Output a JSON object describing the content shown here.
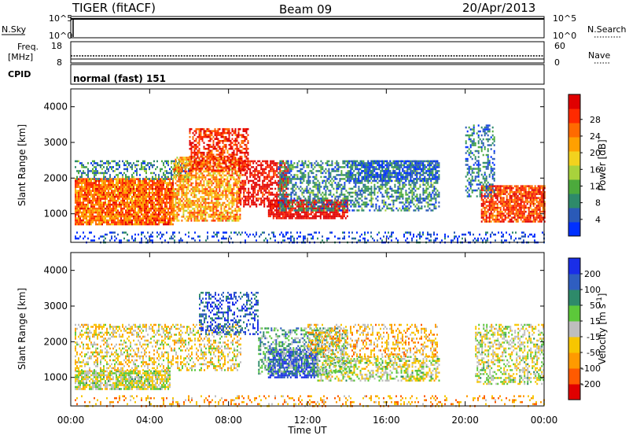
{
  "header": {
    "station": "TIGER (fitACF)",
    "beam": "Beam 09",
    "date": "20/Apr/2013"
  },
  "strips": {
    "nsky_label": "N.Sky",
    "nsearch_label": "N.Search",
    "freq_label_1": "Freq.",
    "freq_label_2": "[MHz]",
    "nave_label": "Nave",
    "cpid_label": "CPID",
    "cpid_value": "normal (fast) 151",
    "noise_ticks": [
      "10^5",
      "10^0"
    ],
    "freq_ticks": [
      "18",
      "8"
    ],
    "nave_ticks": [
      "60",
      "0"
    ]
  },
  "chart_data": [
    {
      "type": "heatmap",
      "title": "",
      "xlabel": "",
      "ylabel": "Slant Range [km]",
      "colorbar_label": "Power [dB]",
      "xlim": [
        0,
        24
      ],
      "ylim": [
        200,
        4500
      ],
      "x_ticks": [
        "00:00",
        "04:00",
        "08:00",
        "12:00",
        "16:00",
        "20:00",
        "00:00"
      ],
      "y_ticks": [
        1000,
        2000,
        3000,
        4000
      ],
      "colorbar_ticks": [
        "4",
        "8",
        "12",
        "16",
        "20",
        "24",
        "28"
      ],
      "colorbar_colors": [
        "#0030ff",
        "#2a5ab8",
        "#2e8a6a",
        "#4caa3c",
        "#a8d23c",
        "#f2d21e",
        "#ffa000",
        "#ff6a00",
        "#ff2a00",
        "#e00000"
      ],
      "regions": [
        {
          "t0": 0.2,
          "t1": 5.2,
          "r0": 700,
          "r1": 2000,
          "value": 22,
          "density": 0.9
        },
        {
          "t0": 0.2,
          "t1": 6.0,
          "r0": 2000,
          "r1": 2500,
          "value": 10,
          "density": 0.4
        },
        {
          "t0": 5.2,
          "t1": 8.6,
          "r0": 800,
          "r1": 2600,
          "value": 20,
          "density": 0.7
        },
        {
          "t0": 6.0,
          "t1": 9.0,
          "r0": 2200,
          "r1": 3400,
          "value": 25,
          "density": 0.6
        },
        {
          "t0": 8.5,
          "t1": 11.0,
          "r0": 1200,
          "r1": 2500,
          "value": 27,
          "density": 0.6
        },
        {
          "t0": 10.0,
          "t1": 14.0,
          "r0": 900,
          "r1": 1400,
          "value": 28,
          "density": 0.8
        },
        {
          "t0": 10.5,
          "t1": 18.7,
          "r0": 1100,
          "r1": 2500,
          "value": 10,
          "density": 0.5
        },
        {
          "t0": 14.0,
          "t1": 18.6,
          "r0": 1900,
          "r1": 2500,
          "value": 7,
          "density": 0.6
        },
        {
          "t0": 20.8,
          "t1": 24.0,
          "r0": 800,
          "r1": 1800,
          "value": 24,
          "density": 0.8
        },
        {
          "t0": 20.0,
          "t1": 21.5,
          "r0": 1500,
          "r1": 3500,
          "value": 9,
          "density": 0.35
        },
        {
          "t0": 0.2,
          "t1": 24.0,
          "r0": 200,
          "r1": 500,
          "value": 6,
          "density": 0.25
        }
      ]
    },
    {
      "type": "heatmap",
      "title": "",
      "xlabel": "Time UT",
      "ylabel": "Slant Range [km]",
      "colorbar_label": "Velocity [m s^-1]",
      "xlim": [
        0,
        24
      ],
      "ylim": [
        200,
        4500
      ],
      "x_ticks": [
        "00:00",
        "04:00",
        "08:00",
        "12:00",
        "16:00",
        "20:00",
        "00:00"
      ],
      "y_ticks": [
        1000,
        2000,
        3000,
        4000
      ],
      "colorbar_ticks": [
        "200",
        "100",
        "50",
        "15",
        "-15",
        "-50",
        "-100",
        "-200"
      ],
      "colorbar_colors": [
        "#1a2ee8",
        "#2f5ec0",
        "#2e8a6a",
        "#5cc83a",
        "#bebebe",
        "#f7c600",
        "#ff9a00",
        "#ff5a00",
        "#e00000"
      ],
      "regions": [
        {
          "t0": 0.2,
          "t1": 5.0,
          "r0": 700,
          "r1": 1200,
          "value": 0,
          "density": 0.8
        },
        {
          "t0": 0.2,
          "t1": 8.6,
          "r0": 1200,
          "r1": 2500,
          "value": -30,
          "density": 0.4
        },
        {
          "t0": 6.5,
          "t1": 9.5,
          "r0": 2200,
          "r1": 3400,
          "value": 150,
          "density": 0.4
        },
        {
          "t0": 10.0,
          "t1": 12.5,
          "r0": 1000,
          "r1": 1800,
          "value": 180,
          "density": 0.7
        },
        {
          "t0": 9.5,
          "t1": 14.0,
          "r0": 1100,
          "r1": 2400,
          "value": 60,
          "density": 0.4
        },
        {
          "t0": 12.5,
          "t1": 18.7,
          "r0": 900,
          "r1": 1600,
          "value": 0,
          "density": 0.5
        },
        {
          "t0": 12.0,
          "t1": 18.6,
          "r0": 1600,
          "r1": 2500,
          "value": -60,
          "density": 0.35
        },
        {
          "t0": 20.5,
          "t1": 24.0,
          "r0": 800,
          "r1": 2500,
          "value": 0,
          "density": 0.45
        },
        {
          "t0": 0.2,
          "t1": 24.0,
          "r0": 200,
          "r1": 500,
          "value": -80,
          "density": 0.2
        }
      ]
    }
  ]
}
